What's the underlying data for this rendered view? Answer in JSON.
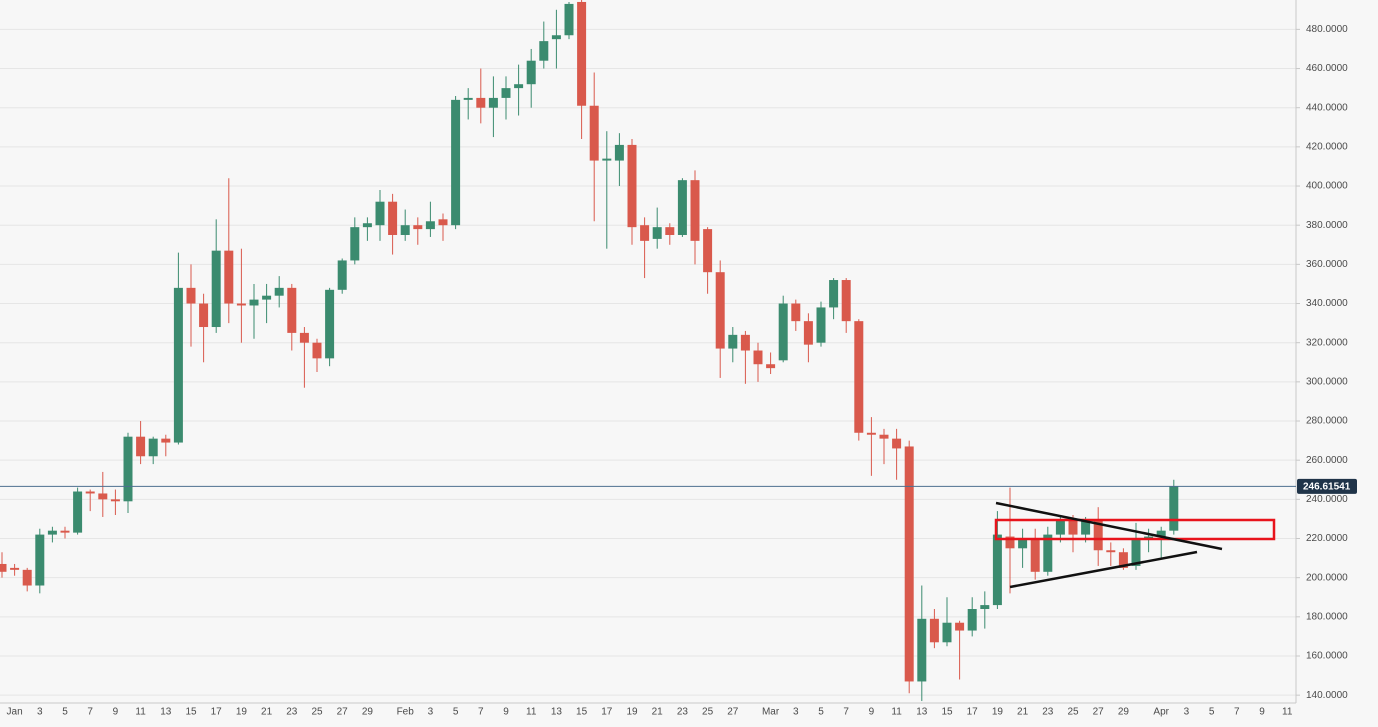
{
  "chart_data": {
    "type": "candlestick",
    "categories": [
      null,
      "Jan",
      null,
      "3",
      null,
      "5",
      null,
      "7",
      null,
      "9",
      null,
      "11",
      null,
      "13",
      null,
      "15",
      null,
      "17",
      null,
      "19",
      null,
      "21",
      null,
      "23",
      null,
      "25",
      null,
      "27",
      null,
      "29",
      null,
      null,
      "Feb",
      null,
      "3",
      null,
      "5",
      null,
      "7",
      null,
      "9",
      null,
      "11",
      null,
      "13",
      null,
      "15",
      null,
      "17",
      null,
      "19",
      null,
      "21",
      null,
      "23",
      null,
      "25",
      null,
      "27",
      null,
      null,
      "Mar",
      null,
      "3",
      null,
      "5",
      null,
      "7",
      null,
      "9",
      null,
      "11",
      null,
      "13",
      null,
      "15",
      null,
      "17",
      null,
      "19",
      null,
      "21",
      null,
      "23",
      null,
      "25",
      null,
      "27",
      null,
      "29",
      null,
      null,
      "Apr",
      null,
      "3",
      null,
      "5",
      null,
      "7",
      null,
      "9",
      null,
      "11"
    ],
    "open": [
      207,
      205,
      204,
      196,
      222,
      224,
      223,
      244,
      243,
      240,
      239,
      272,
      262,
      271,
      269,
      348,
      340,
      328,
      367,
      340,
      339,
      342,
      344,
      348,
      325,
      320,
      312,
      347,
      362,
      379,
      380,
      392,
      375,
      380,
      378,
      383,
      380,
      444,
      445,
      440,
      445,
      450,
      452,
      464,
      475,
      477,
      494,
      441,
      413,
      413,
      421,
      380,
      373,
      379,
      375,
      403,
      378,
      356,
      317,
      324,
      316,
      309,
      311,
      340,
      331,
      320,
      338,
      352,
      331,
      274,
      273,
      271,
      267,
      147,
      179,
      167,
      177,
      173,
      184,
      186,
      221,
      215,
      220,
      203,
      222,
      229,
      222,
      229,
      214,
      213,
      206,
      220,
      221,
      224,
      null,
      null,
      null,
      null,
      null,
      null,
      null,
      null,
      null
    ],
    "high": [
      213,
      207,
      205,
      225,
      226,
      226,
      246,
      245,
      254,
      245,
      274,
      280,
      272,
      273,
      366,
      360,
      345,
      383,
      404,
      368,
      350,
      350,
      354,
      350,
      328,
      322,
      348,
      363,
      384,
      384,
      398,
      396,
      388,
      384,
      392,
      386,
      446,
      450,
      460,
      456,
      456,
      462,
      470,
      484,
      490,
      494,
      495,
      458,
      428,
      427,
      424,
      384,
      389,
      381,
      404,
      408,
      379,
      362,
      328,
      326,
      320,
      315,
      344,
      342,
      335,
      341,
      353,
      353,
      332,
      282,
      276,
      276,
      270,
      196,
      184,
      190,
      178,
      190,
      193,
      234,
      246,
      225,
      225,
      226,
      232,
      232,
      231,
      236,
      218,
      215,
      228,
      225,
      226,
      250,
      null,
      null,
      null,
      null,
      null,
      null,
      null,
      null,
      null
    ],
    "low": [
      200,
      201,
      193,
      192,
      218,
      220,
      222,
      234,
      231,
      232,
      233,
      258,
      258,
      262,
      268,
      318,
      310,
      325,
      330,
      320,
      322,
      330,
      338,
      316,
      297,
      305,
      308,
      345,
      360,
      372,
      372,
      365,
      372,
      370,
      374,
      372,
      378,
      434,
      432,
      425,
      434,
      436,
      440,
      460,
      460,
      475,
      424,
      382,
      368,
      400,
      370,
      353,
      368,
      370,
      374,
      360,
      345,
      302,
      310,
      299,
      300,
      304,
      310,
      326,
      310,
      318,
      332,
      325,
      270,
      252,
      258,
      250,
      141,
      137,
      164,
      165,
      148,
      170,
      174,
      184,
      192,
      205,
      199,
      201,
      218,
      213,
      218,
      206,
      206,
      204,
      204,
      213,
      210,
      222,
      null,
      null,
      null,
      null,
      null,
      null,
      null,
      null,
      null
    ],
    "close": [
      203,
      204,
      196,
      222,
      224,
      223,
      244,
      243,
      240,
      239,
      272,
      262,
      271,
      269,
      348,
      340,
      328,
      367,
      340,
      339,
      342,
      344,
      348,
      325,
      320,
      312,
      347,
      362,
      379,
      381,
      392,
      375,
      380,
      378,
      382,
      380,
      444,
      445,
      440,
      445,
      450,
      452,
      464,
      474,
      477,
      493,
      441,
      413,
      414,
      421,
      379,
      372,
      379,
      375,
      403,
      372,
      356,
      317,
      324,
      316,
      309,
      307,
      340,
      331,
      319,
      338,
      352,
      331,
      274,
      273,
      271,
      266,
      147,
      179,
      167,
      177,
      173,
      184,
      186,
      222,
      215,
      220,
      203,
      222,
      229,
      222,
      229,
      214,
      213,
      205,
      220,
      221,
      224,
      246.6,
      null,
      null,
      null,
      null,
      null,
      null,
      null,
      null,
      null
    ],
    "up_color": "#3b8b6f",
    "down_color": "#d9594c",
    "last_price": 246.61541,
    "ylim": [
      136,
      495
    ],
    "yticks": [
      {
        "value": 140,
        "label": "140.0000"
      },
      {
        "value": 160,
        "label": "160.0000"
      },
      {
        "value": 180,
        "label": "180.0000"
      },
      {
        "value": 200,
        "label": "200.0000"
      },
      {
        "value": 220,
        "label": "220.0000"
      },
      {
        "value": 240,
        "label": "240.0000"
      },
      {
        "value": 260,
        "label": "260.0000"
      },
      {
        "value": 280,
        "label": "280.0000"
      },
      {
        "value": 300,
        "label": "300.0000"
      },
      {
        "value": 320,
        "label": "320.0000"
      },
      {
        "value": 340,
        "label": "340.0000"
      },
      {
        "value": 360,
        "label": "360.0000"
      },
      {
        "value": 380,
        "label": "380.0000"
      },
      {
        "value": 400,
        "label": "400.0000"
      },
      {
        "value": 420,
        "label": "420.0000"
      },
      {
        "value": 440,
        "label": "440.0000"
      },
      {
        "value": 460,
        "label": "460.0000"
      },
      {
        "value": 480,
        "label": "480.0000"
      }
    ],
    "grid": true
  }
}
